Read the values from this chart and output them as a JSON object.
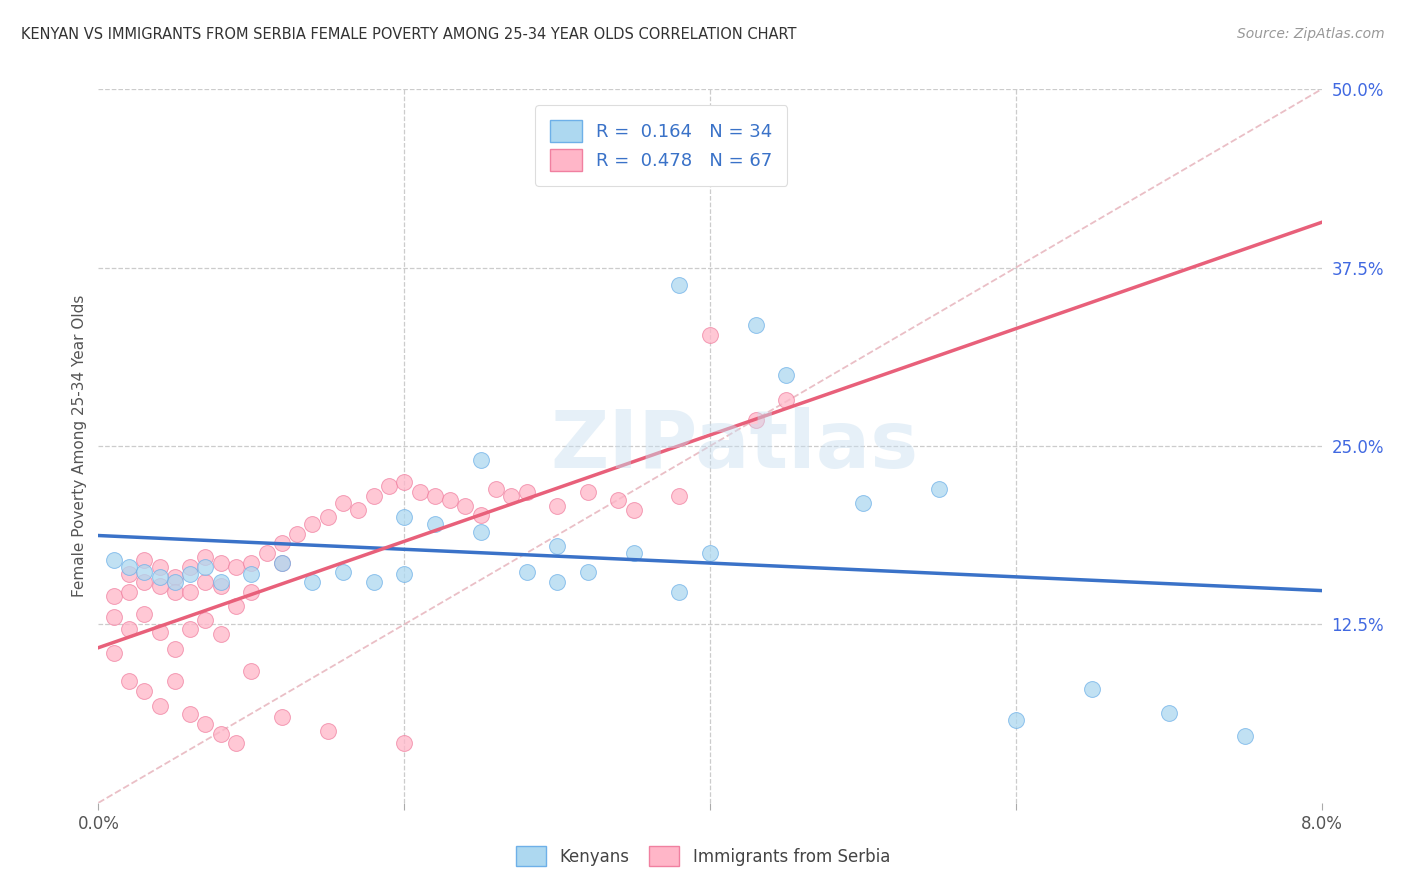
{
  "title": "KENYAN VS IMMIGRANTS FROM SERBIA FEMALE POVERTY AMONG 25-34 YEAR OLDS CORRELATION CHART",
  "source": "Source: ZipAtlas.com",
  "ylabel": "Female Poverty Among 25-34 Year Olds",
  "legend_r1": "R =  0.164   N = 34",
  "legend_r2": "R =  0.478   N = 67",
  "legend_label1": "Kenyans",
  "legend_label2": "Immigrants from Serbia",
  "watermark": "ZIPatlas",
  "kenyan_color": "#ADD8F0",
  "serbia_color": "#FFB6C8",
  "kenyan_edge_color": "#6EB0E8",
  "serbia_edge_color": "#F080A0",
  "kenyan_line_color": "#3A72C8",
  "serbia_line_color": "#E8607A",
  "R_kenyan": 0.164,
  "N_kenyan": 34,
  "R_serbia": 0.478,
  "N_serbia": 67,
  "xlim": [
    0.0,
    0.08
  ],
  "ylim": [
    0.0,
    0.5
  ],
  "diag_line_color": "#E8B8C0",
  "background_color": "#FFFFFF",
  "kenyan_scatter_x": [
    0.001,
    0.002,
    0.003,
    0.004,
    0.005,
    0.006,
    0.007,
    0.008,
    0.01,
    0.012,
    0.014,
    0.016,
    0.018,
    0.02,
    0.022,
    0.025,
    0.028,
    0.03,
    0.032,
    0.035,
    0.038,
    0.04,
    0.043,
    0.045,
    0.02,
    0.025,
    0.03,
    0.05,
    0.055,
    0.06,
    0.065,
    0.07,
    0.075,
    0.038
  ],
  "kenyan_scatter_y": [
    0.17,
    0.165,
    0.162,
    0.158,
    0.155,
    0.16,
    0.165,
    0.155,
    0.16,
    0.168,
    0.155,
    0.162,
    0.155,
    0.2,
    0.195,
    0.24,
    0.162,
    0.155,
    0.162,
    0.175,
    0.148,
    0.175,
    0.335,
    0.3,
    0.16,
    0.19,
    0.18,
    0.21,
    0.22,
    0.058,
    0.08,
    0.063,
    0.047,
    0.363
  ],
  "serbia_scatter_x": [
    0.001,
    0.001,
    0.001,
    0.002,
    0.002,
    0.002,
    0.003,
    0.003,
    0.003,
    0.004,
    0.004,
    0.004,
    0.005,
    0.005,
    0.005,
    0.006,
    0.006,
    0.006,
    0.007,
    0.007,
    0.007,
    0.008,
    0.008,
    0.008,
    0.009,
    0.009,
    0.01,
    0.01,
    0.011,
    0.012,
    0.012,
    0.013,
    0.014,
    0.015,
    0.016,
    0.017,
    0.018,
    0.019,
    0.02,
    0.021,
    0.022,
    0.023,
    0.024,
    0.025,
    0.026,
    0.027,
    0.028,
    0.03,
    0.032,
    0.034,
    0.035,
    0.038,
    0.04,
    0.043,
    0.045,
    0.002,
    0.003,
    0.004,
    0.005,
    0.006,
    0.007,
    0.008,
    0.009,
    0.01,
    0.012,
    0.015,
    0.02
  ],
  "serbia_scatter_y": [
    0.145,
    0.13,
    0.105,
    0.16,
    0.148,
    0.122,
    0.17,
    0.155,
    0.132,
    0.165,
    0.152,
    0.12,
    0.158,
    0.148,
    0.108,
    0.165,
    0.148,
    0.122,
    0.172,
    0.155,
    0.128,
    0.168,
    0.152,
    0.118,
    0.165,
    0.138,
    0.168,
    0.148,
    0.175,
    0.182,
    0.168,
    0.188,
    0.195,
    0.2,
    0.21,
    0.205,
    0.215,
    0.222,
    0.225,
    0.218,
    0.215,
    0.212,
    0.208,
    0.202,
    0.22,
    0.215,
    0.218,
    0.208,
    0.218,
    0.212,
    0.205,
    0.215,
    0.328,
    0.268,
    0.282,
    0.085,
    0.078,
    0.068,
    0.085,
    0.062,
    0.055,
    0.048,
    0.042,
    0.092,
    0.06,
    0.05,
    0.042
  ]
}
